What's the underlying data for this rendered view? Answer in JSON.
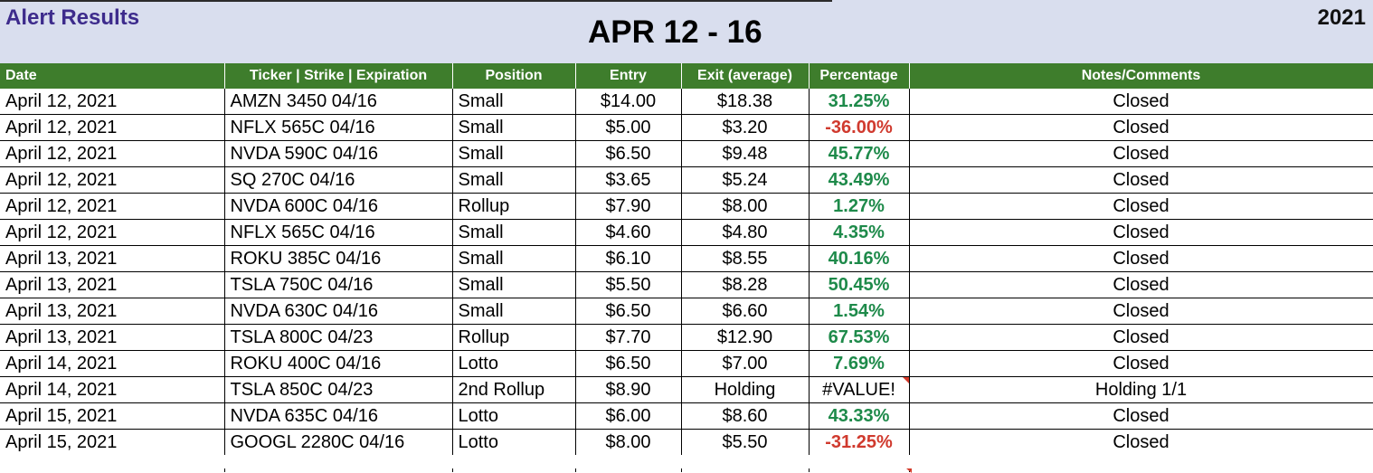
{
  "header": {
    "left_title": "Alert Results",
    "center_title": "APR 12 - 16",
    "year": "2021"
  },
  "columns": [
    "Date",
    "Ticker | Strike | Expiration",
    "Position",
    "Entry",
    "Exit (average)",
    "Percentage",
    "Notes/Comments"
  ],
  "rows": [
    {
      "date": "April 12, 2021",
      "ticker": "AMZN 3450 04/16",
      "position": "Small",
      "entry": "$14.00",
      "exit": "$18.38",
      "pct": "31.25%",
      "sign": "pos",
      "notes": "Closed"
    },
    {
      "date": "April 12, 2021",
      "ticker": "NFLX 565C 04/16",
      "position": "Small",
      "entry": "$5.00",
      "exit": "$3.20",
      "pct": "-36.00%",
      "sign": "neg",
      "notes": "Closed"
    },
    {
      "date": "April 12, 2021",
      "ticker": "NVDA 590C 04/16",
      "position": "Small",
      "entry": "$6.50",
      "exit": "$9.48",
      "pct": "45.77%",
      "sign": "pos",
      "notes": "Closed"
    },
    {
      "date": "April 12, 2021",
      "ticker": "SQ 270C 04/16",
      "position": "Small",
      "entry": "$3.65",
      "exit": "$5.24",
      "pct": "43.49%",
      "sign": "pos",
      "notes": "Closed"
    },
    {
      "date": "April 12, 2021",
      "ticker": "NVDA 600C 04/16",
      "position": "Rollup",
      "entry": "$7.90",
      "exit": "$8.00",
      "pct": "1.27%",
      "sign": "pos",
      "notes": "Closed"
    },
    {
      "date": "April 12, 2021",
      "ticker": "NFLX 565C 04/16",
      "position": "Small",
      "entry": "$4.60",
      "exit": "$4.80",
      "pct": "4.35%",
      "sign": "pos",
      "notes": "Closed"
    },
    {
      "date": "April 13, 2021",
      "ticker": "ROKU 385C 04/16",
      "position": "Small",
      "entry": "$6.10",
      "exit": "$8.55",
      "pct": "40.16%",
      "sign": "pos",
      "notes": "Closed"
    },
    {
      "date": "April 13, 2021",
      "ticker": "TSLA 750C 04/16",
      "position": "Small",
      "entry": "$5.50",
      "exit": "$8.28",
      "pct": "50.45%",
      "sign": "pos",
      "notes": "Closed"
    },
    {
      "date": "April 13, 2021",
      "ticker": "NVDA 630C 04/16",
      "position": "Small",
      "entry": "$6.50",
      "exit": "$6.60",
      "pct": "1.54%",
      "sign": "pos",
      "notes": "Closed"
    },
    {
      "date": "April 13, 2021",
      "ticker": "TSLA 800C 04/23",
      "position": "Rollup",
      "entry": "$7.70",
      "exit": "$12.90",
      "pct": "67.53%",
      "sign": "pos",
      "notes": "Closed"
    },
    {
      "date": "April 14, 2021",
      "ticker": "ROKU 400C 04/16",
      "position": "Lotto",
      "entry": "$6.50",
      "exit": "$7.00",
      "pct": "7.69%",
      "sign": "pos",
      "notes": "Closed"
    },
    {
      "date": "April 14, 2021",
      "ticker": "TSLA 850C 04/23",
      "position": "2nd Rollup",
      "entry": "$8.90",
      "exit": "Holding",
      "pct": "#VALUE!",
      "sign": "err",
      "notes": "Holding 1/1"
    },
    {
      "date": "April 15, 2021",
      "ticker": "NVDA 635C 04/16",
      "position": "Lotto",
      "entry": "$6.00",
      "exit": "$8.60",
      "pct": "43.33%",
      "sign": "pos",
      "notes": "Closed"
    },
    {
      "date": "April 15, 2021",
      "ticker": "GOOGL 2280C 04/16",
      "position": "Lotto",
      "entry": "$8.00",
      "exit": "$5.50",
      "pct": "-31.25%",
      "sign": "neg",
      "notes": "Closed"
    }
  ],
  "colors": {
    "header_band": "#d9deee",
    "title_purple": "#3d2b8c",
    "table_header_green": "#3e7d2c",
    "positive_green": "#1e8a4a",
    "negative_red": "#d03a2e",
    "error_flag_red": "#d43a2a"
  }
}
